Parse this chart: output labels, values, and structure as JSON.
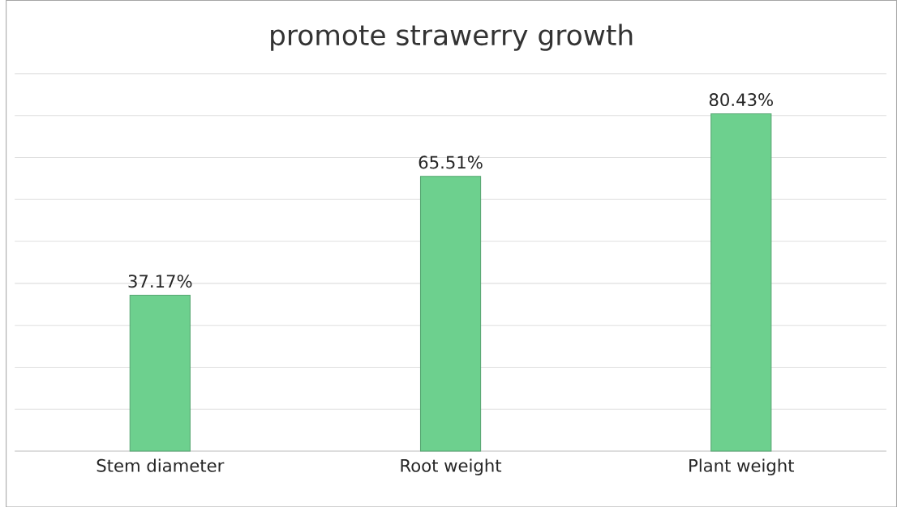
{
  "chart_data": {
    "type": "bar",
    "title": "promote strawerry growth",
    "categories": [
      "Stem diameter",
      "Root weight",
      "Plant weight"
    ],
    "values": [
      37.17,
      65.51,
      80.43
    ],
    "color": "#6dd08e",
    "value_labels": [
      "37.17%",
      "65.51%",
      "80.43%"
    ],
    "grid": "y",
    "tick_labels": "x"
  }
}
